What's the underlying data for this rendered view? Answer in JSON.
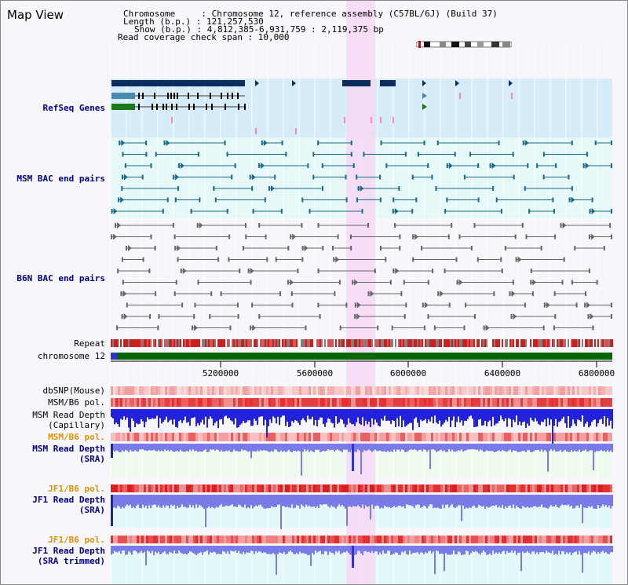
{
  "page": {
    "title": "Map View"
  },
  "info": {
    "chromosome": "Chromosome     : Chromosome 12, reference assembly (C57BL/6J) (Build 37)",
    "length": "Length (b.p.) : 121,257,530",
    "show": "Show (b.p.) : 4,812,385-6,931,759 : 2,119,375 bp",
    "span": "Read coverage check span : 10,000"
  },
  "tracks": {
    "refseq": "RefSeq Genes",
    "msm_bac": "MSM BAC end pairs",
    "b6n_bac": "B6N BAC end pairs",
    "repeat": "Repeat",
    "chromosome": "chromosome 12",
    "dbsnp": "dbSNP(Mouse)",
    "msm_pol1": "MSM/B6 pol.",
    "msm_depth_cap": "MSM Read Depth",
    "msm_depth_cap_sub": "(Capillary)",
    "msm_pol2": "MSM/B6 pol.",
    "msm_depth_sra": "MSM Read Depth",
    "msm_depth_sra_sub": "(SRA)",
    "jf1_pol1": "JF1/B6 pol.",
    "jf1_depth": "JF1 Read Depth",
    "jf1_depth_sub": "(SRA)",
    "jf1_pol2": "JF1/B6 pol.",
    "jf1_depth_trim": "JF1 Read Depth",
    "jf1_depth_trim_sub": "(SRA trimmed)"
  },
  "axis": {
    "ticks": [
      "5200000",
      "5600000",
      "6000000",
      "6400000",
      "6800000"
    ]
  },
  "colors": {
    "navy_label": "#000080",
    "orange_label": "#e09000",
    "highlight": "#f7d8f4",
    "refseq_bg": "#d6ecf8",
    "msm_bg": "#e6f8f8",
    "chromosome_bar": "#006600",
    "depth_blue": "#2222dd",
    "depth_light": "#7a7ae8"
  }
}
